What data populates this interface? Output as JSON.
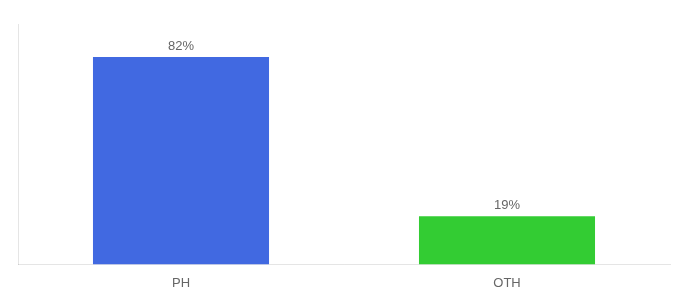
{
  "chart_data": {
    "type": "bar",
    "categories": [
      "PH",
      "OTH"
    ],
    "values": [
      82,
      19
    ],
    "value_labels": [
      "82%",
      "19%"
    ],
    "colors": [
      "#4169e1",
      "#33cc33"
    ],
    "ylim": [
      0,
      95
    ],
    "grid": false,
    "data_labels": true,
    "tick_labels": "x"
  }
}
